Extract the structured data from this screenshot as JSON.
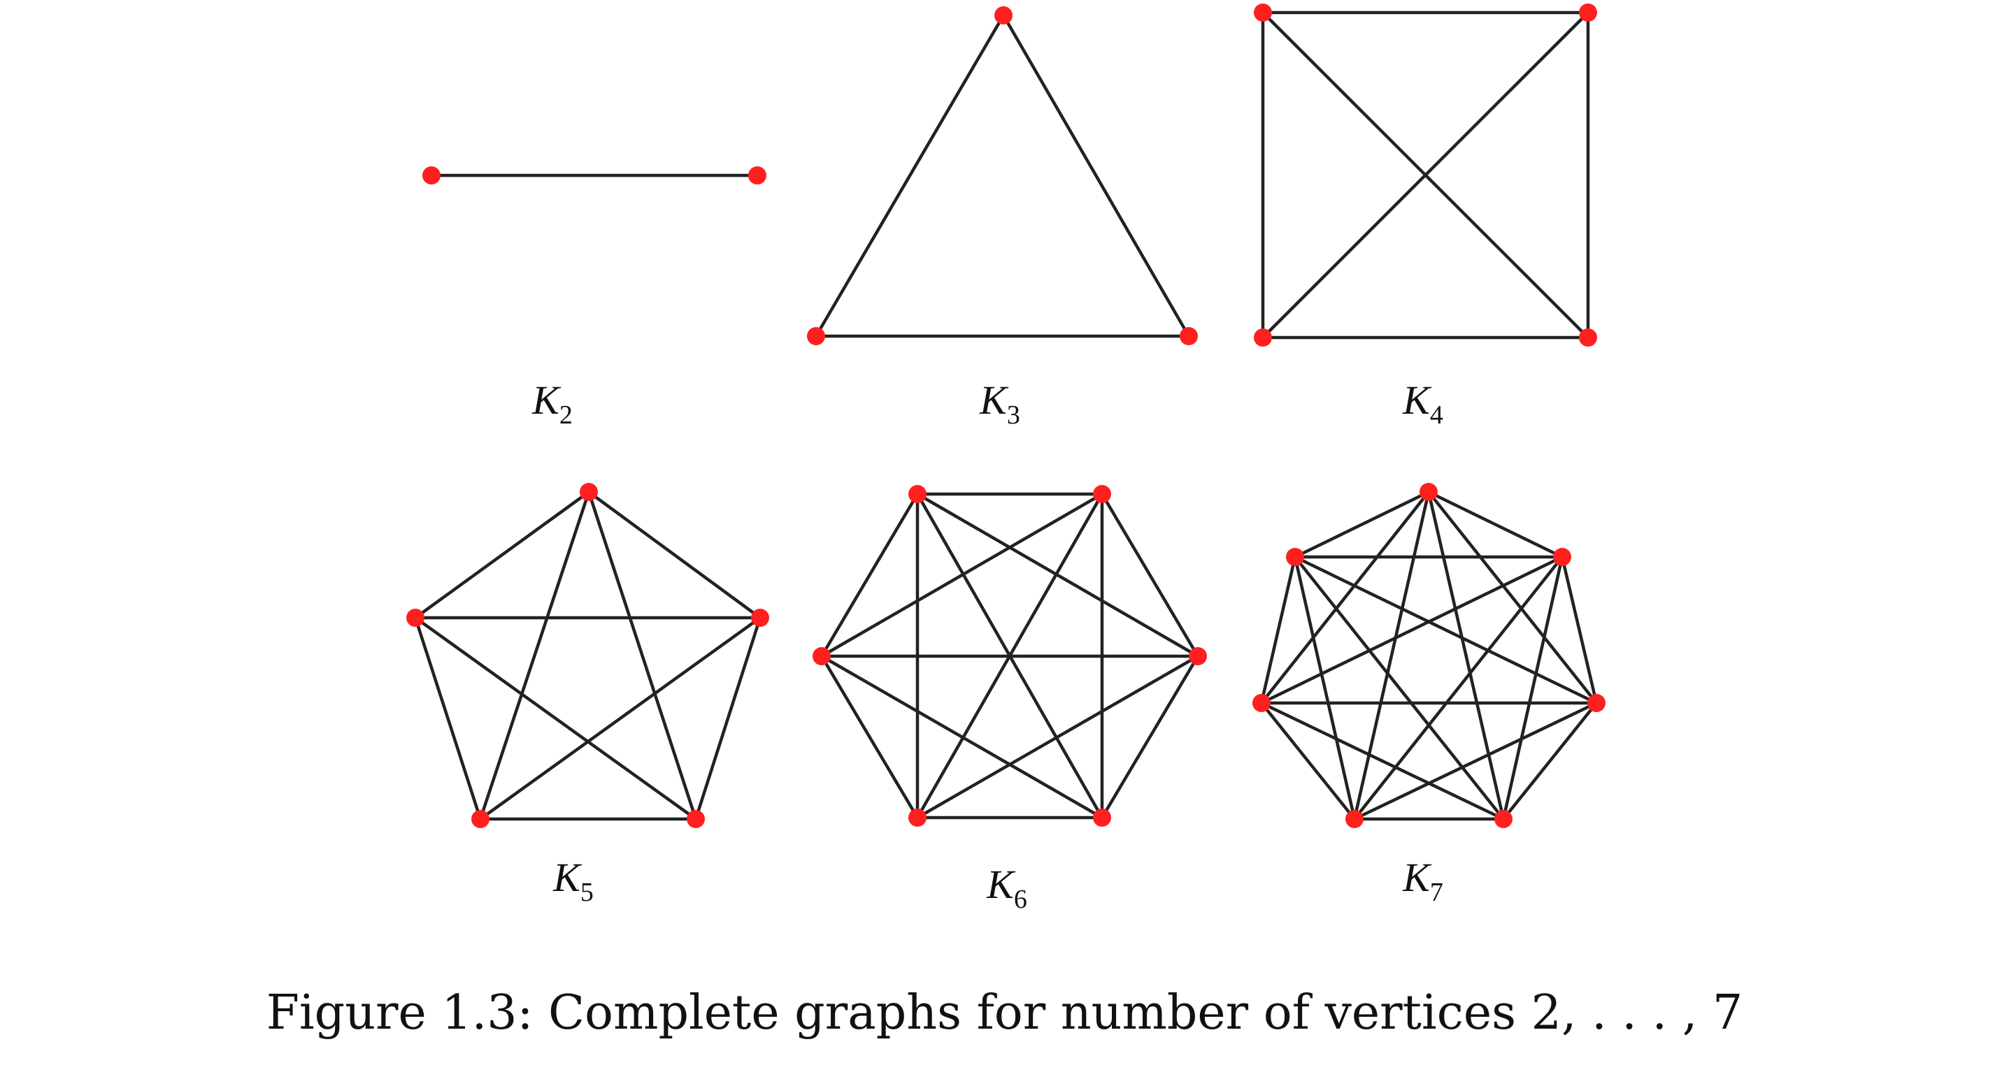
{
  "figure": {
    "caption": "Figure 1.3: Complete graphs for number of vertices 2, . . . , 7",
    "vertex_color": "#ff1f1f",
    "edge_color": "#222222",
    "graphs": [
      {
        "id": "K2",
        "label_main": "K",
        "label_sub": "2",
        "vertices": 2
      },
      {
        "id": "K3",
        "label_main": "K",
        "label_sub": "3",
        "vertices": 3
      },
      {
        "id": "K4",
        "label_main": "K",
        "label_sub": "4",
        "vertices": 4
      },
      {
        "id": "K5",
        "label_main": "K",
        "label_sub": "5",
        "vertices": 5
      },
      {
        "id": "K6",
        "label_main": "K",
        "label_sub": "6",
        "vertices": 6
      },
      {
        "id": "K7",
        "label_main": "K",
        "label_sub": "7",
        "vertices": 7
      }
    ]
  }
}
